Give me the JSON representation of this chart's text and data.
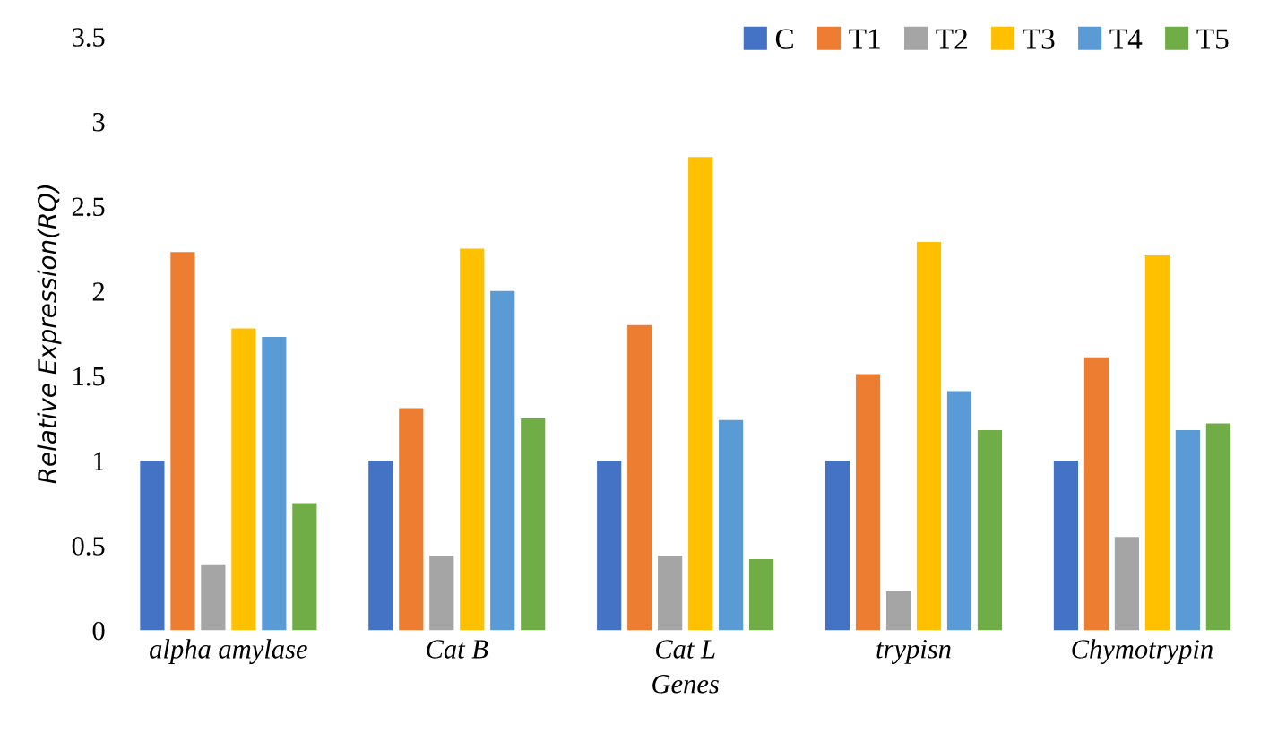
{
  "chart_data": {
    "type": "bar",
    "xlabel": "Genes",
    "ylabel": "Relative Expression(RQ)",
    "categories": [
      "alpha amylase",
      "Cat B",
      "Cat L",
      "trypisn",
      "Chymotrypin"
    ],
    "series": [
      {
        "name": "C",
        "color": "#4472c4",
        "values": [
          1.0,
          1.0,
          1.0,
          1.0,
          1.0
        ]
      },
      {
        "name": "T1",
        "color": "#ed7d31",
        "values": [
          2.23,
          1.31,
          1.8,
          1.51,
          1.61
        ]
      },
      {
        "name": "T2",
        "color": "#a5a5a5",
        "values": [
          0.39,
          0.44,
          0.44,
          0.23,
          0.55
        ]
      },
      {
        "name": "T3",
        "color": "#ffc000",
        "values": [
          1.78,
          2.25,
          2.79,
          2.29,
          2.21
        ]
      },
      {
        "name": "T4",
        "color": "#5b9bd5",
        "values": [
          1.73,
          2.0,
          1.24,
          1.41,
          1.18
        ]
      },
      {
        "name": "T5",
        "color": "#70ad47",
        "values": [
          0.75,
          1.25,
          0.42,
          1.18,
          1.22
        ]
      }
    ],
    "ylim": [
      0,
      3.5
    ],
    "yticks": [
      0,
      0.5,
      1,
      1.5,
      2,
      2.5,
      3,
      3.5
    ],
    "grid": false,
    "legend": "top right"
  }
}
